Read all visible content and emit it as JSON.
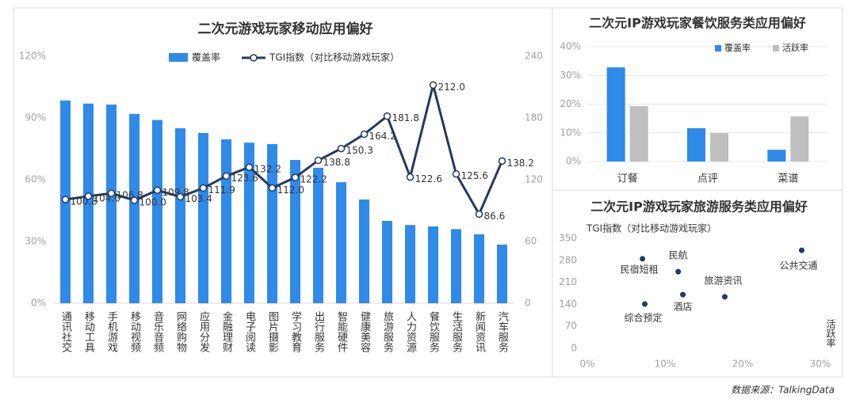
{
  "chart_data": [
    {
      "type": "bar_line",
      "title": "二次元游戏玩家移动应用偏好",
      "categories": [
        "通讯社交",
        "移动工具",
        "手机游戏",
        "移动视频",
        "音乐音频",
        "网络购物",
        "应用分发",
        "金融理财",
        "电子阅读",
        "图片摄影",
        "学习教育",
        "出行服务",
        "智能硬件",
        "健康美容",
        "旅游服务",
        "人力资源",
        "餐饮服务",
        "生活服务",
        "新闻资讯",
        "汽车服务"
      ],
      "series": [
        {
          "name": "覆盖率",
          "color": "#2f8ae8",
          "values": [
            98.5,
            97,
            96.5,
            92,
            89,
            85,
            82.7,
            79.6,
            78,
            77.3,
            69.6,
            65.8,
            58.8,
            50.4,
            40,
            38,
            37.3,
            36,
            33.5,
            28.5
          ]
        },
        {
          "name": "TGI指数（对比移动游戏玩家）",
          "color": "#243a5e",
          "axis": "y2",
          "values": [
            100.8,
            104.0,
            106.8,
            100.0,
            109.8,
            103.4,
            111.9,
            123.6,
            132.2,
            112.0,
            122.2,
            138.8,
            150.3,
            164.2,
            181.8,
            122.6,
            212.0,
            125.6,
            86.6,
            138.2
          ],
          "value_labels": [
            "100.8",
            "104.0",
            "106.8",
            "100.0",
            "109.8",
            "103.4",
            "111.9",
            "123.6",
            "132.2",
            "112.0",
            "122.2",
            "138.8",
            "150.3",
            "164.2",
            "181.8",
            "122.6",
            "212.0",
            "125.6",
            "86.6",
            "138.2"
          ]
        }
      ],
      "ylim": [
        0,
        120
      ],
      "yticks": [
        {
          "value": 0,
          "label": "0%"
        },
        {
          "value": 30,
          "label": "30%"
        },
        {
          "value": 60,
          "label": "60%"
        },
        {
          "value": 90,
          "label": "90%"
        },
        {
          "value": 120,
          "label": "120%"
        }
      ],
      "y2lim": [
        0,
        240
      ],
      "y2ticks": [
        0,
        60,
        120,
        180,
        240
      ],
      "grid": false
    },
    {
      "type": "bar",
      "title": "二次元IP游戏玩家餐饮服务类应用偏好",
      "categories": [
        "订餐",
        "点评",
        "菜谱"
      ],
      "series": [
        {
          "name": "覆盖率",
          "color": "#2f8ae8",
          "values": [
            32.8,
            11.6,
            4.1
          ]
        },
        {
          "name": "活跃率",
          "color": "#bfbfbf",
          "values": [
            19.3,
            9.9,
            15.7
          ]
        }
      ],
      "ylim": [
        0,
        40
      ],
      "yticks": [
        {
          "value": 0,
          "label": "0%"
        },
        {
          "value": 10,
          "label": "10%"
        },
        {
          "value": 20,
          "label": "20%"
        },
        {
          "value": 30,
          "label": "30%"
        },
        {
          "value": 40,
          "label": "40%"
        }
      ],
      "grid": true
    },
    {
      "type": "scatter",
      "title": "二次元IP游戏玩家旅游服务类应用偏好",
      "y_label": "TGI指数（对比移动游戏玩家）",
      "x_label": "活跃率",
      "color": "#243a5e",
      "point_labels": [
        "民宿短租",
        "民航",
        "公共交通",
        "旅游资讯",
        "酒店",
        "综合预定"
      ],
      "x": [
        7.1,
        11.7,
        27.6,
        17.7,
        12.3,
        7.4
      ],
      "values": [
        285,
        244,
        312,
        164,
        171,
        141
      ],
      "xlim": [
        0,
        30
      ],
      "xticks": [
        {
          "value": 0,
          "label": "0%"
        },
        {
          "value": 10,
          "label": "10%"
        },
        {
          "value": 20,
          "label": "20%"
        },
        {
          "value": 30,
          "label": "30%"
        }
      ],
      "ylim": [
        0,
        350
      ],
      "yticks": [
        0,
        70,
        140,
        210,
        280,
        350
      ],
      "grid": false
    }
  ],
  "source": "数据来源：TalkingData"
}
